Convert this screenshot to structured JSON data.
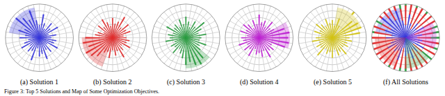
{
  "chart_data": {
    "type": "barpolar",
    "grid": true,
    "tick_labels": false,
    "rlim": [
      0,
      1
    ],
    "rticks": [
      0.2,
      0.4,
      0.6,
      0.8,
      1
    ],
    "theta": [
      0,
      10,
      20,
      30,
      40,
      50,
      60,
      70,
      80,
      90,
      100,
      110,
      120,
      130,
      140,
      150,
      160,
      170,
      180,
      190,
      200,
      210,
      220,
      230,
      240,
      250,
      260,
      270,
      280,
      290,
      300,
      310,
      320,
      330,
      340,
      350
    ],
    "captions": [
      "(a) Solution 1",
      "(b) Solution 2",
      "(c) Solution 3",
      "(d) Solution 4",
      "(e) Solution 5",
      "(f) All Solutions"
    ],
    "figure_caption": "Figure 3: Top 5 Solutions and Map of Some Optimization Objectives.",
    "series": [
      {
        "color": "#3b3bdc",
        "values": [
          0.35,
          0.5,
          0.28,
          0.62,
          0.4,
          0.55,
          0.3,
          0.45,
          0.7,
          0.38,
          0.52,
          0.85,
          0.6,
          0.75,
          0.9,
          0.5,
          0.65,
          0.42,
          0.58,
          0.33,
          0.47,
          0.6,
          0.36,
          0.52,
          0.44,
          0.7,
          0.31,
          0.55,
          0.48,
          0.66,
          0.4,
          0.53,
          0.29,
          0.61,
          0.45,
          0.5
        ],
        "highlight": {
          "theta": [
            100,
            170
          ],
          "r": 0.9
        }
      },
      {
        "color": "#e03131",
        "values": [
          0.4,
          0.32,
          0.55,
          0.45,
          0.6,
          0.38,
          0.7,
          0.5,
          0.42,
          0.58,
          0.35,
          0.48,
          0.62,
          0.4,
          0.55,
          0.3,
          0.46,
          0.52,
          0.8,
          0.88,
          0.75,
          0.9,
          0.82,
          0.7,
          0.5,
          0.44,
          0.6,
          0.37,
          0.53,
          0.41,
          0.66,
          0.47,
          0.35,
          0.58,
          0.43,
          0.5
        ],
        "highlight": {
          "theta": [
            180,
            250
          ],
          "r": 0.9
        }
      },
      {
        "color": "#2f9e44",
        "values": [
          0.45,
          0.6,
          0.38,
          0.52,
          0.7,
          0.42,
          0.55,
          0.33,
          0.48,
          0.62,
          0.4,
          0.57,
          0.36,
          0.5,
          0.44,
          0.65,
          0.39,
          0.53,
          0.47,
          0.6,
          0.35,
          0.5,
          0.42,
          0.58,
          0.37,
          0.49,
          0.61,
          0.8,
          0.72,
          0.85,
          0.9,
          0.78,
          0.55,
          0.46,
          0.63,
          0.4
        ],
        "highlight": {
          "theta": [
            270,
            320
          ],
          "r": 0.9
        }
      },
      {
        "color": "#c026d3",
        "values": [
          0.85,
          0.9,
          0.78,
          0.5,
          0.42,
          0.6,
          0.37,
          0.53,
          0.46,
          0.68,
          0.4,
          0.55,
          0.32,
          0.5,
          0.6,
          0.44,
          0.58,
          0.36,
          0.52,
          0.47,
          0.63,
          0.39,
          0.56,
          0.43,
          0.61,
          0.35,
          0.5,
          0.45,
          0.57,
          0.4,
          0.66,
          0.48,
          0.55,
          0.42,
          0.8,
          0.88
        ],
        "highlight": {
          "theta": [
            340,
            30
          ],
          "r": 0.9
        }
      },
      {
        "color": "#d4c41a",
        "values": [
          0.5,
          0.82,
          0.9,
          0.86,
          0.75,
          0.55,
          0.4,
          0.6,
          0.36,
          0.52,
          0.44,
          0.58,
          0.38,
          0.5,
          0.62,
          0.42,
          0.56,
          0.34,
          0.48,
          0.6,
          0.4,
          0.53,
          0.45,
          0.67,
          0.37,
          0.5,
          0.43,
          0.59,
          0.35,
          0.55,
          0.47,
          0.63,
          0.41,
          0.52,
          0.46,
          0.58
        ],
        "highlight": {
          "theta": [
            20,
            80
          ],
          "r": 0.9
        }
      }
    ]
  }
}
